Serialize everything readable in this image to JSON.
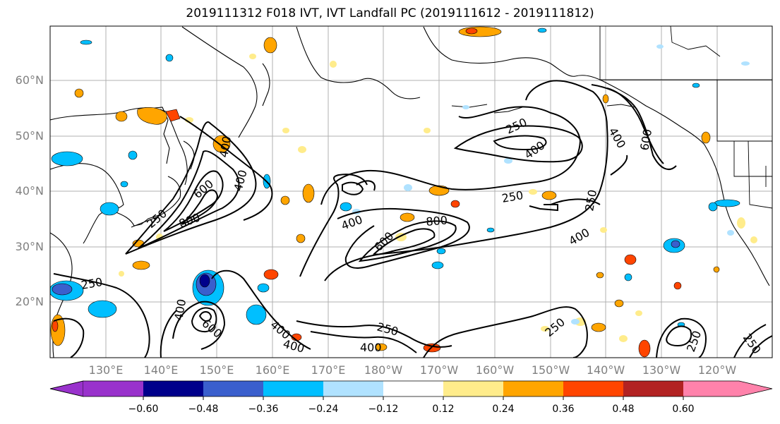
{
  "title": "2019111312 F018 IVT, IVT Landfall PC (2019111612 - 2019111812)",
  "lat_labels": [
    "60°N",
    "50°N",
    "40°N",
    "30°N",
    "20°N"
  ],
  "lon_labels": [
    "130°E",
    "140°E",
    "150°E",
    "160°E",
    "170°E",
    "180°W",
    "170°W",
    "160°W",
    "150°W",
    "140°W",
    "130°W",
    "120°W"
  ],
  "contour_labels": [
    "250",
    "400",
    "600",
    "800",
    "250",
    "400",
    "250",
    "400",
    "600",
    "800",
    "250",
    "400",
    "250",
    "400",
    "600",
    "400",
    "400",
    "250",
    "400",
    "250",
    "400",
    "250",
    "250",
    "600",
    "400"
  ],
  "colorbar": {
    "ticks": [
      "−0.60",
      "−0.48",
      "−0.36",
      "−0.24",
      "−0.12",
      "0.12",
      "0.24",
      "0.36",
      "0.48",
      "0.60"
    ],
    "colors": [
      "#9932cc",
      "#00008b",
      "#3a5fcd",
      "#00bfff",
      "#b0e2ff",
      "#ffffff",
      "#ffec8b",
      "#ffa500",
      "#ff4500",
      "#b22222",
      "#ff82ab"
    ]
  }
}
